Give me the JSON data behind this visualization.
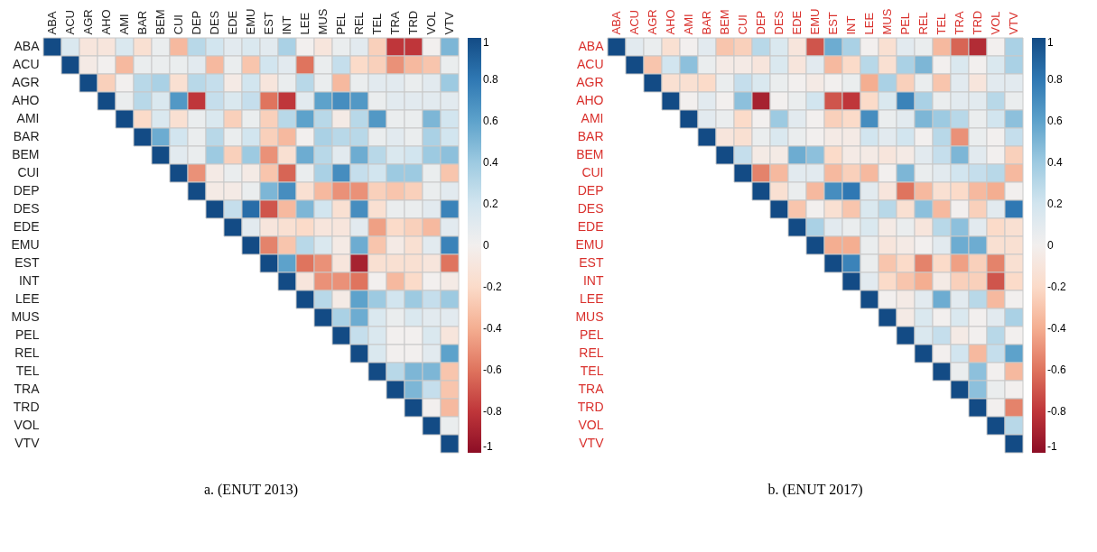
{
  "chart_data": [
    {
      "type": "heatmap",
      "title": "a. (ENUT 2013)",
      "clim": [
        -1,
        1
      ],
      "cticks": [
        1,
        0.8,
        0.6,
        0.4,
        0.2,
        0,
        -0.2,
        -0.4,
        -0.6,
        -0.8,
        -1
      ],
      "categories": [
        "ABA",
        "ACU",
        "AGR",
        "AHO",
        "AMI",
        "BAR",
        "BEM",
        "CUI",
        "DEP",
        "DES",
        "EDE",
        "EMU",
        "EST",
        "INT",
        "LEE",
        "MUS",
        "PEL",
        "REL",
        "TEL",
        "TRA",
        "TRD",
        "VOL",
        "VTV"
      ],
      "y_categories": [
        "ABA",
        "ACU",
        "AGR",
        "AHO",
        "AMI",
        "BAR",
        "BEM",
        "CUI",
        "DEP",
        "DES",
        "EDE",
        "EMU",
        "EST",
        "INT",
        "LEE",
        "MUS",
        "PEL",
        "REL",
        "TEL",
        "TRA",
        "TRD",
        "VOL",
        "VTV"
      ],
      "cells": [
        [
          1,
          0.15,
          -0.1,
          -0.1,
          0.15,
          -0.15,
          0.05,
          -0.35,
          0.3,
          0.2,
          0.1,
          0.15,
          0.1,
          0.35,
          0,
          -0.1,
          0.05,
          0.1,
          -0.25,
          -0.8,
          -0.8,
          0,
          0.5
        ],
        [
          null,
          1,
          -0.05,
          0,
          -0.35,
          0.05,
          0.05,
          0.05,
          0.1,
          -0.35,
          0.05,
          -0.3,
          0.2,
          0.1,
          -0.6,
          0.05,
          0.25,
          -0.2,
          -0.25,
          -0.5,
          -0.35,
          -0.3,
          0.05
        ],
        [
          null,
          null,
          1,
          -0.25,
          0,
          0.3,
          0.35,
          -0.15,
          0.3,
          0.25,
          -0.05,
          0.2,
          -0.1,
          0.05,
          0.3,
          0.05,
          -0.35,
          0.05,
          0.1,
          0.1,
          0.05,
          0.1,
          0.4
        ],
        [
          null,
          null,
          null,
          1,
          0.05,
          0.3,
          0.15,
          0.65,
          -0.8,
          0.25,
          0.15,
          0.25,
          -0.6,
          -0.8,
          0.1,
          0.6,
          0.7,
          0.65,
          0.05,
          0.1,
          0.1,
          0.1,
          0.1
        ],
        [
          null,
          null,
          null,
          null,
          1,
          -0.2,
          0.15,
          -0.15,
          0.05,
          0.15,
          -0.25,
          0.05,
          -0.25,
          0.3,
          0.6,
          0.3,
          -0.05,
          0.3,
          0.65,
          0.05,
          0.05,
          0.5,
          0.2
        ],
        [
          null,
          null,
          null,
          null,
          null,
          1,
          0.55,
          0.2,
          0.05,
          0.3,
          0.05,
          0.2,
          -0.25,
          -0.35,
          0,
          0.35,
          0.3,
          0.3,
          0.05,
          0.1,
          0.05,
          0.35,
          0.2
        ],
        [
          null,
          null,
          null,
          null,
          null,
          null,
          1,
          0.1,
          0.05,
          0.4,
          -0.25,
          0.4,
          -0.5,
          -0.15,
          0.55,
          0.3,
          0.1,
          0.55,
          0.3,
          0.15,
          0.2,
          0.4,
          0.45
        ],
        [
          null,
          null,
          null,
          null,
          null,
          null,
          null,
          1,
          -0.5,
          -0.05,
          0.05,
          -0.05,
          -0.3,
          -0.65,
          0.05,
          0.35,
          0.7,
          0.25,
          0.2,
          0.4,
          0.4,
          0.05,
          -0.3
        ],
        [
          null,
          null,
          null,
          null,
          null,
          null,
          null,
          null,
          1,
          -0.05,
          -0.05,
          0.05,
          0.5,
          0.7,
          -0.15,
          -0.35,
          -0.5,
          -0.5,
          -0.25,
          -0.3,
          -0.25,
          0.05,
          0.1
        ],
        [
          null,
          null,
          null,
          null,
          null,
          null,
          null,
          null,
          null,
          1,
          0.25,
          0.85,
          -0.7,
          -0.35,
          0.5,
          0.2,
          -0.15,
          0.7,
          -0.15,
          0.05,
          0.05,
          0.1,
          0.75
        ],
        [
          null,
          null,
          null,
          null,
          null,
          null,
          null,
          null,
          null,
          null,
          1,
          0.1,
          -0.1,
          -0.15,
          -0.2,
          -0.1,
          -0.1,
          0.1,
          -0.45,
          -0.2,
          -0.25,
          -0.35,
          0.1
        ],
        [
          null,
          null,
          null,
          null,
          null,
          null,
          null,
          null,
          null,
          null,
          null,
          1,
          -0.55,
          -0.3,
          0.3,
          0.15,
          -0.05,
          0.55,
          -0.3,
          -0.05,
          -0.15,
          0.1,
          0.75
        ],
        [
          null,
          null,
          null,
          null,
          null,
          null,
          null,
          null,
          null,
          null,
          null,
          null,
          1,
          0.6,
          -0.6,
          -0.5,
          -0.1,
          -0.9,
          -0.15,
          -0.15,
          -0.15,
          -0.1,
          -0.6
        ],
        [
          null,
          null,
          null,
          null,
          null,
          null,
          null,
          null,
          null,
          null,
          null,
          null,
          null,
          1,
          -0.1,
          -0.5,
          -0.5,
          -0.6,
          0,
          -0.35,
          -0.2,
          0,
          -0.05
        ],
        [
          null,
          null,
          null,
          null,
          null,
          null,
          null,
          null,
          null,
          null,
          null,
          null,
          null,
          null,
          1,
          0.3,
          -0.05,
          0.6,
          0.4,
          0.2,
          0.4,
          0.25,
          0.4
        ],
        [
          null,
          null,
          null,
          null,
          null,
          null,
          null,
          null,
          null,
          null,
          null,
          null,
          null,
          null,
          null,
          1,
          0.35,
          0.55,
          0.15,
          0.05,
          0.15,
          0.1,
          0.1
        ],
        [
          null,
          null,
          null,
          null,
          null,
          null,
          null,
          null,
          null,
          null,
          null,
          null,
          null,
          null,
          null,
          null,
          1,
          0.25,
          0.15,
          0,
          0,
          0.15,
          -0.1
        ],
        [
          null,
          null,
          null,
          null,
          null,
          null,
          null,
          null,
          null,
          null,
          null,
          null,
          null,
          null,
          null,
          null,
          null,
          1,
          0.15,
          0,
          0,
          0.1,
          0.6
        ],
        [
          null,
          null,
          null,
          null,
          null,
          null,
          null,
          null,
          null,
          null,
          null,
          null,
          null,
          null,
          null,
          null,
          null,
          null,
          1,
          0.3,
          0.5,
          0.5,
          -0.3
        ],
        [
          null,
          null,
          null,
          null,
          null,
          null,
          null,
          null,
          null,
          null,
          null,
          null,
          null,
          null,
          null,
          null,
          null,
          null,
          null,
          1,
          0.5,
          0.25,
          -0.3
        ],
        [
          null,
          null,
          null,
          null,
          null,
          null,
          null,
          null,
          null,
          null,
          null,
          null,
          null,
          null,
          null,
          null,
          null,
          null,
          null,
          null,
          1,
          0,
          -0.35
        ],
        [
          null,
          null,
          null,
          null,
          null,
          null,
          null,
          null,
          null,
          null,
          null,
          null,
          null,
          null,
          null,
          null,
          null,
          null,
          null,
          null,
          null,
          1,
          0.05
        ],
        [
          null,
          null,
          null,
          null,
          null,
          null,
          null,
          null,
          null,
          null,
          null,
          null,
          null,
          null,
          null,
          null,
          null,
          null,
          null,
          null,
          null,
          null,
          1
        ]
      ]
    },
    {
      "type": "heatmap",
      "title": "b. (ENUT 2017)",
      "clim": [
        -1,
        1
      ],
      "cticks": [
        1,
        0.8,
        0.6,
        0.4,
        0.2,
        0,
        -0.2,
        -0.4,
        -0.6,
        -0.8,
        -1
      ],
      "categories": [
        "ABA",
        "ACU",
        "AGR",
        "AHO",
        "AMI",
        "BAR",
        "BEM",
        "CUI",
        "DEP",
        "DES",
        "EDE",
        "EMU",
        "EST",
        "INT",
        "LEE",
        "MUS",
        "PEL",
        "REL",
        "TEL",
        "TRA",
        "TRD",
        "VOL",
        "VTV"
      ],
      "y_categories": [
        "ABA",
        "ACU",
        "AGR",
        "AHO",
        "AMI",
        "BAR",
        "BEM",
        "CUI",
        "DEP",
        "DES",
        "EDE",
        "EMU",
        "EST",
        "INT",
        "LEE",
        "MUS",
        "PEL",
        "REL",
        "TEL",
        "TRA",
        "TRD",
        "VOL",
        "VTV"
      ],
      "cells": [
        [
          1,
          0.1,
          0.05,
          -0.15,
          0,
          0.1,
          -0.3,
          -0.25,
          0.3,
          0.15,
          -0.1,
          -0.7,
          0.55,
          0.35,
          0,
          -0.15,
          0.1,
          0.05,
          -0.35,
          -0.65,
          -0.85,
          0,
          0.35
        ],
        [
          null,
          1,
          -0.3,
          0.2,
          0.45,
          0.05,
          -0.05,
          -0.05,
          -0.1,
          0.15,
          -0.1,
          0.1,
          -0.35,
          -0.2,
          0.3,
          -0.15,
          0.35,
          0.5,
          0,
          0.15,
          0,
          0.15,
          0.35
        ],
        [
          null,
          null,
          1,
          -0.15,
          -0.15,
          -0.2,
          0.05,
          0.25,
          0.15,
          0.05,
          0,
          -0.05,
          0,
          0.05,
          -0.4,
          0.35,
          -0.25,
          0.05,
          -0.3,
          0.1,
          -0.1,
          0.1,
          0.1
        ],
        [
          null,
          null,
          null,
          1,
          0,
          0.1,
          0,
          0.45,
          -0.9,
          0,
          0.05,
          0.2,
          -0.7,
          -0.8,
          -0.2,
          0.15,
          0.75,
          0.35,
          0.05,
          0.1,
          0.1,
          0.3,
          0.05
        ],
        [
          null,
          null,
          null,
          null,
          1,
          0.1,
          0.05,
          -0.2,
          0,
          0.4,
          0.1,
          0,
          -0.25,
          -0.2,
          0.7,
          0.05,
          0.1,
          0.5,
          0.4,
          0.3,
          0.05,
          0.2,
          0.45
        ],
        [
          null,
          null,
          null,
          null,
          null,
          1,
          -0.1,
          -0.15,
          0.05,
          0.15,
          0.05,
          0,
          -0.05,
          -0.05,
          0.2,
          0.1,
          0.2,
          0,
          0.3,
          -0.5,
          0.05,
          0,
          0.25
        ],
        [
          null,
          null,
          null,
          null,
          null,
          null,
          1,
          0.25,
          -0.05,
          -0.05,
          0.55,
          0.45,
          -0.2,
          -0.05,
          -0.05,
          -0.1,
          -0.05,
          0.1,
          0.25,
          0.5,
          0.1,
          0,
          -0.25
        ],
        [
          null,
          null,
          null,
          null,
          null,
          null,
          null,
          1,
          -0.55,
          -0.35,
          0.1,
          0.1,
          -0.35,
          -0.25,
          -0.35,
          0,
          0.5,
          0.05,
          0.1,
          0.2,
          0.25,
          0.3,
          -0.35
        ],
        [
          null,
          null,
          null,
          null,
          null,
          null,
          null,
          null,
          1,
          -0.15,
          0.05,
          -0.35,
          0.7,
          0.8,
          0.1,
          -0.1,
          -0.6,
          -0.35,
          -0.15,
          -0.2,
          -0.35,
          -0.4,
          0
        ],
        [
          null,
          null,
          null,
          null,
          null,
          null,
          null,
          null,
          null,
          1,
          -0.3,
          0,
          -0.15,
          -0.3,
          0.15,
          0.3,
          -0.15,
          0.45,
          -0.35,
          0,
          -0.25,
          0.1,
          0.8
        ],
        [
          null,
          null,
          null,
          null,
          null,
          null,
          null,
          null,
          null,
          null,
          1,
          0.35,
          0.1,
          0.05,
          0.15,
          -0.05,
          0.05,
          -0.1,
          0.3,
          0.45,
          0.1,
          -0.2,
          -0.15
        ],
        [
          null,
          null,
          null,
          null,
          null,
          null,
          null,
          null,
          null,
          null,
          null,
          1,
          -0.4,
          -0.4,
          0.05,
          -0.1,
          -0.05,
          0,
          0.1,
          0.55,
          0.55,
          -0.15,
          -0.15
        ],
        [
          null,
          null,
          null,
          null,
          null,
          null,
          null,
          null,
          null,
          null,
          null,
          null,
          1,
          0.75,
          0.05,
          -0.3,
          -0.2,
          -0.55,
          -0.2,
          -0.45,
          -0.25,
          -0.55,
          -0.15
        ],
        [
          null,
          null,
          null,
          null,
          null,
          null,
          null,
          null,
          null,
          null,
          null,
          null,
          null,
          1,
          0.1,
          -0.2,
          -0.3,
          -0.4,
          -0.05,
          -0.25,
          -0.25,
          -0.7,
          -0.2
        ],
        [
          null,
          null,
          null,
          null,
          null,
          null,
          null,
          null,
          null,
          null,
          null,
          null,
          null,
          null,
          1,
          0,
          -0.05,
          0.1,
          0.55,
          0.1,
          0.3,
          -0.35,
          0
        ],
        [
          null,
          null,
          null,
          null,
          null,
          null,
          null,
          null,
          null,
          null,
          null,
          null,
          null,
          null,
          null,
          1,
          -0.05,
          0.15,
          0,
          0.15,
          0,
          0.1,
          0.35
        ],
        [
          null,
          null,
          null,
          null,
          null,
          null,
          null,
          null,
          null,
          null,
          null,
          null,
          null,
          null,
          null,
          null,
          1,
          0.15,
          0.25,
          -0.05,
          0,
          0.3,
          0
        ],
        [
          null,
          null,
          null,
          null,
          null,
          null,
          null,
          null,
          null,
          null,
          null,
          null,
          null,
          null,
          null,
          null,
          null,
          1,
          0,
          0.2,
          -0.35,
          0.25,
          0.6
        ],
        [
          null,
          null,
          null,
          null,
          null,
          null,
          null,
          null,
          null,
          null,
          null,
          null,
          null,
          null,
          null,
          null,
          null,
          null,
          1,
          0.05,
          0.45,
          0,
          -0.35
        ],
        [
          null,
          null,
          null,
          null,
          null,
          null,
          null,
          null,
          null,
          null,
          null,
          null,
          null,
          null,
          null,
          null,
          null,
          null,
          null,
          1,
          0.45,
          0.05,
          0
        ],
        [
          null,
          null,
          null,
          null,
          null,
          null,
          null,
          null,
          null,
          null,
          null,
          null,
          null,
          null,
          null,
          null,
          null,
          null,
          null,
          null,
          1,
          0,
          -0.55
        ],
        [
          null,
          null,
          null,
          null,
          null,
          null,
          null,
          null,
          null,
          null,
          null,
          null,
          null,
          null,
          null,
          null,
          null,
          null,
          null,
          null,
          null,
          1,
          0.3
        ],
        [
          null,
          null,
          null,
          null,
          null,
          null,
          null,
          null,
          null,
          null,
          null,
          null,
          null,
          null,
          null,
          null,
          null,
          null,
          null,
          null,
          null,
          null,
          1
        ]
      ]
    }
  ]
}
